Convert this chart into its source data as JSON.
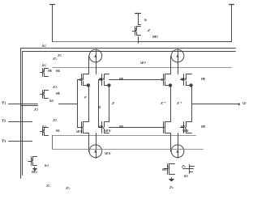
{
  "fig_width": 3.12,
  "fig_height": 2.46,
  "dpi": 100,
  "lc": "#444444",
  "lc2": "#777777",
  "lw": 0.7,
  "fs": 3.8,
  "fs2": 3.2,
  "xlim": [
    0,
    312
  ],
  "ylim": [
    0,
    246
  ]
}
